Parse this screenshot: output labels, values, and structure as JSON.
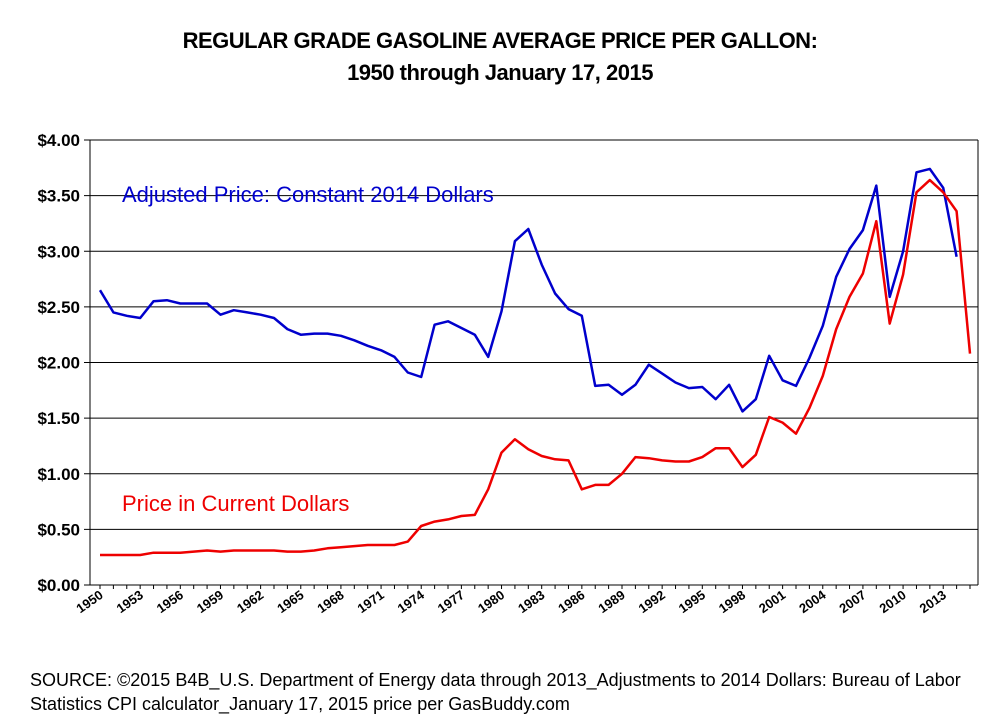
{
  "chart_data": {
    "type": "line",
    "title": "REGULAR GRADE GASOLINE AVERAGE PRICE PER GALLON:",
    "subtitle": "1950 through January 17, 2015",
    "xlabel": "",
    "ylabel": "",
    "ylim": [
      0,
      4
    ],
    "yticks": [
      "$0.00",
      "$0.50",
      "$1.00",
      "$1.50",
      "$2.00",
      "$2.50",
      "$3.00",
      "$3.50",
      "$4.00"
    ],
    "xtick_labels": [
      "1950",
      "1953",
      "1956",
      "1959",
      "1962",
      "1965",
      "1968",
      "1971",
      "1974",
      "1977",
      "1980",
      "1983",
      "1986",
      "1989",
      "1992",
      "1995",
      "1998",
      "2001",
      "2004",
      "2007",
      "2010",
      "2013"
    ],
    "grid": "horizontal",
    "x": [
      1950,
      1951,
      1952,
      1953,
      1954,
      1955,
      1956,
      1957,
      1958,
      1959,
      1960,
      1961,
      1962,
      1963,
      1964,
      1965,
      1966,
      1967,
      1968,
      1969,
      1970,
      1971,
      1972,
      1973,
      1974,
      1975,
      1976,
      1977,
      1978,
      1979,
      1980,
      1981,
      1982,
      1983,
      1984,
      1985,
      1986,
      1987,
      1988,
      1989,
      1990,
      1991,
      1992,
      1993,
      1994,
      1995,
      1996,
      1997,
      1998,
      1999,
      2000,
      2001,
      2002,
      2003,
      2004,
      2005,
      2006,
      2007,
      2008,
      2009,
      2010,
      2011,
      2012,
      2013,
      2014,
      2015
    ],
    "series": [
      {
        "name": "Adjusted Price: Constant 2014 Dollars",
        "color": "#0000cc",
        "values": [
          2.65,
          2.45,
          2.42,
          2.4,
          2.55,
          2.56,
          2.53,
          2.53,
          2.53,
          2.43,
          2.47,
          2.45,
          2.43,
          2.4,
          2.3,
          2.25,
          2.26,
          2.26,
          2.24,
          2.2,
          2.15,
          2.11,
          2.05,
          1.91,
          1.87,
          2.34,
          2.37,
          2.31,
          2.25,
          2.05,
          2.46,
          3.09,
          3.2,
          2.88,
          2.62,
          2.48,
          2.42,
          1.79,
          1.8,
          1.71,
          1.8,
          1.98,
          1.9,
          1.82,
          1.77,
          1.78,
          1.67,
          1.8,
          1.56,
          1.67,
          2.06,
          1.84,
          1.79,
          2.04,
          2.33,
          2.77,
          3.02,
          3.19,
          3.59,
          2.59,
          3.0,
          3.71,
          3.74,
          3.57,
          2.95,
          null
        ]
      },
      {
        "name": "Price in Current Dollars",
        "color": "#ee0000",
        "values": [
          0.27,
          0.27,
          0.27,
          0.27,
          0.29,
          0.29,
          0.29,
          0.3,
          0.31,
          0.3,
          0.31,
          0.31,
          0.31,
          0.31,
          0.3,
          0.3,
          0.31,
          0.33,
          0.34,
          0.35,
          0.36,
          0.36,
          0.36,
          0.39,
          0.53,
          0.57,
          0.59,
          0.62,
          0.63,
          0.86,
          1.19,
          1.31,
          1.22,
          1.16,
          1.13,
          1.12,
          0.86,
          0.9,
          0.9,
          1.0,
          1.15,
          1.14,
          1.12,
          1.11,
          1.11,
          1.15,
          1.23,
          1.23,
          1.06,
          1.17,
          1.51,
          1.46,
          1.36,
          1.59,
          1.88,
          2.3,
          2.59,
          2.8,
          3.27,
          2.35,
          2.79,
          3.53,
          3.64,
          3.53,
          3.36,
          2.08
        ]
      }
    ],
    "annotations": [
      {
        "text": "Adjusted Price: Constant 2014 Dollars",
        "series": 0
      },
      {
        "text": "Price in Current Dollars",
        "series": 1
      }
    ]
  },
  "source_text": "SOURCE: ©2015 B4B_U.S. Department of Energy data through 2013_Adjustments to 2014 Dollars: Bureau of Labor Statistics CPI calculator_January 17, 2015 price per GasBuddy.com"
}
